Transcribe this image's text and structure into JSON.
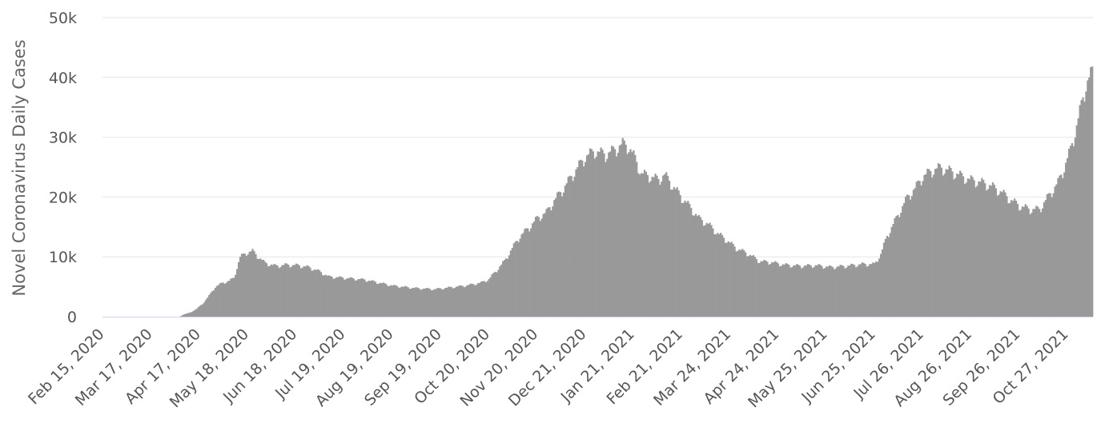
{
  "chart_data": {
    "type": "bar",
    "title": "",
    "ylabel": "Novel Coronavirus Daily Cases",
    "xlabel": "",
    "ylim": [
      0,
      50000
    ],
    "yticks": [
      {
        "value": 0,
        "label": "0"
      },
      {
        "value": 10000,
        "label": "10k"
      },
      {
        "value": 20000,
        "label": "20k"
      },
      {
        "value": 30000,
        "label": "30k"
      },
      {
        "value": 40000,
        "label": "40k"
      },
      {
        "value": 50000,
        "label": "50k"
      }
    ],
    "x_start": "2020-02-15",
    "x_end": "2021-11-12",
    "xtick_labels": [
      {
        "date": "2020-02-15",
        "label": "Feb 15, 2020"
      },
      {
        "date": "2020-03-17",
        "label": "Mar 17, 2020"
      },
      {
        "date": "2020-04-17",
        "label": "Apr 17, 2020"
      },
      {
        "date": "2020-05-18",
        "label": "May 18, 2020"
      },
      {
        "date": "2020-06-18",
        "label": "Jun 18, 2020"
      },
      {
        "date": "2020-07-19",
        "label": "Jul 19, 2020"
      },
      {
        "date": "2020-08-19",
        "label": "Aug 19, 2020"
      },
      {
        "date": "2020-09-19",
        "label": "Sep 19, 2020"
      },
      {
        "date": "2020-10-20",
        "label": "Oct 20, 2020"
      },
      {
        "date": "2020-11-20",
        "label": "Nov 20, 2020"
      },
      {
        "date": "2020-12-21",
        "label": "Dec 21, 2020"
      },
      {
        "date": "2021-01-21",
        "label": "Jan 21, 2021"
      },
      {
        "date": "2021-02-21",
        "label": "Feb 21, 2021"
      },
      {
        "date": "2021-03-24",
        "label": "Mar 24, 2021"
      },
      {
        "date": "2021-04-24",
        "label": "Apr 24, 2021"
      },
      {
        "date": "2021-05-25",
        "label": "May 25, 2021"
      },
      {
        "date": "2021-06-25",
        "label": "Jun 25, 2021"
      },
      {
        "date": "2021-07-26",
        "label": "Jul 26, 2021"
      },
      {
        "date": "2021-08-26",
        "label": "Aug 26, 2021"
      },
      {
        "date": "2021-09-26",
        "label": "Sep 26, 2021"
      },
      {
        "date": "2021-10-27",
        "label": "Oct 27, 2021"
      }
    ],
    "bar_color": "#999999",
    "grid": true,
    "grid_color": "#e6e6e6",
    "series_points": [
      {
        "date": "2020-02-15",
        "value": 0
      },
      {
        "date": "2020-04-04",
        "value": 0
      },
      {
        "date": "2020-04-07",
        "value": 400
      },
      {
        "date": "2020-04-11",
        "value": 700
      },
      {
        "date": "2020-04-15",
        "value": 1300
      },
      {
        "date": "2020-04-19",
        "value": 2200
      },
      {
        "date": "2020-04-23",
        "value": 3500
      },
      {
        "date": "2020-04-27",
        "value": 5000
      },
      {
        "date": "2020-05-02",
        "value": 5700
      },
      {
        "date": "2020-05-06",
        "value": 6000
      },
      {
        "date": "2020-05-09",
        "value": 6500
      },
      {
        "date": "2020-05-13",
        "value": 10000
      },
      {
        "date": "2020-05-17",
        "value": 10700
      },
      {
        "date": "2020-05-21",
        "value": 11000
      },
      {
        "date": "2020-05-24",
        "value": 10200
      },
      {
        "date": "2020-05-29",
        "value": 9000
      },
      {
        "date": "2020-06-05",
        "value": 8500
      },
      {
        "date": "2020-06-12",
        "value": 8700
      },
      {
        "date": "2020-06-19",
        "value": 8600
      },
      {
        "date": "2020-06-26",
        "value": 8300
      },
      {
        "date": "2020-07-03",
        "value": 7600
      },
      {
        "date": "2020-07-09",
        "value": 6700
      },
      {
        "date": "2020-07-19",
        "value": 6500
      },
      {
        "date": "2020-08-01",
        "value": 6200
      },
      {
        "date": "2020-08-10",
        "value": 5700
      },
      {
        "date": "2020-08-19",
        "value": 5200
      },
      {
        "date": "2020-09-02",
        "value": 4800
      },
      {
        "date": "2020-09-15",
        "value": 4600
      },
      {
        "date": "2020-09-25",
        "value": 4900
      },
      {
        "date": "2020-10-05",
        "value": 5200
      },
      {
        "date": "2020-10-15",
        "value": 5700
      },
      {
        "date": "2020-10-20",
        "value": 6300
      },
      {
        "date": "2020-10-25",
        "value": 7800
      },
      {
        "date": "2020-10-30",
        "value": 9300
      },
      {
        "date": "2020-11-04",
        "value": 11500
      },
      {
        "date": "2020-11-09",
        "value": 13500
      },
      {
        "date": "2020-11-15",
        "value": 15000
      },
      {
        "date": "2020-11-20",
        "value": 16500
      },
      {
        "date": "2020-11-26",
        "value": 17500
      },
      {
        "date": "2020-12-01",
        "value": 19500
      },
      {
        "date": "2020-12-07",
        "value": 21500
      },
      {
        "date": "2020-12-12",
        "value": 23500
      },
      {
        "date": "2020-12-16",
        "value": 25000
      },
      {
        "date": "2020-12-21",
        "value": 26800
      },
      {
        "date": "2020-12-27",
        "value": 27800
      },
      {
        "date": "2021-01-03",
        "value": 27200
      },
      {
        "date": "2021-01-09",
        "value": 28000
      },
      {
        "date": "2021-01-14",
        "value": 29000
      },
      {
        "date": "2021-01-18",
        "value": 28500
      },
      {
        "date": "2021-01-22",
        "value": 26500
      },
      {
        "date": "2021-01-26",
        "value": 24000
      },
      {
        "date": "2021-02-01",
        "value": 23500
      },
      {
        "date": "2021-02-06",
        "value": 23000
      },
      {
        "date": "2021-02-10",
        "value": 23800
      },
      {
        "date": "2021-02-15",
        "value": 22000
      },
      {
        "date": "2021-02-21",
        "value": 20000
      },
      {
        "date": "2021-02-26",
        "value": 18500
      },
      {
        "date": "2021-03-04",
        "value": 16500
      },
      {
        "date": "2021-03-10",
        "value": 15500
      },
      {
        "date": "2021-03-16",
        "value": 14000
      },
      {
        "date": "2021-03-22",
        "value": 12800
      },
      {
        "date": "2021-03-28",
        "value": 11500
      },
      {
        "date": "2021-04-05",
        "value": 10500
      },
      {
        "date": "2021-04-12",
        "value": 9300
      },
      {
        "date": "2021-04-20",
        "value": 9100
      },
      {
        "date": "2021-04-28",
        "value": 8700
      },
      {
        "date": "2021-05-08",
        "value": 8500
      },
      {
        "date": "2021-05-18",
        "value": 8600
      },
      {
        "date": "2021-05-28",
        "value": 8300
      },
      {
        "date": "2021-06-07",
        "value": 8500
      },
      {
        "date": "2021-06-17",
        "value": 8800
      },
      {
        "date": "2021-06-25",
        "value": 8800
      },
      {
        "date": "2021-06-29",
        "value": 10500
      },
      {
        "date": "2021-07-03",
        "value": 13500
      },
      {
        "date": "2021-07-07",
        "value": 15500
      },
      {
        "date": "2021-07-11",
        "value": 17500
      },
      {
        "date": "2021-07-16",
        "value": 20000
      },
      {
        "date": "2021-07-21",
        "value": 21500
      },
      {
        "date": "2021-07-26",
        "value": 23500
      },
      {
        "date": "2021-08-01",
        "value": 24500
      },
      {
        "date": "2021-08-06",
        "value": 25000
      },
      {
        "date": "2021-08-12",
        "value": 24500
      },
      {
        "date": "2021-08-18",
        "value": 23800
      },
      {
        "date": "2021-08-25",
        "value": 23000
      },
      {
        "date": "2021-09-02",
        "value": 22500
      },
      {
        "date": "2021-09-09",
        "value": 21800
      },
      {
        "date": "2021-09-15",
        "value": 20800
      },
      {
        "date": "2021-09-21",
        "value": 19500
      },
      {
        "date": "2021-09-27",
        "value": 18500
      },
      {
        "date": "2021-10-03",
        "value": 18000
      },
      {
        "date": "2021-10-09",
        "value": 18000
      },
      {
        "date": "2021-10-13",
        "value": 19500
      },
      {
        "date": "2021-10-17",
        "value": 21000
      },
      {
        "date": "2021-10-21",
        "value": 22500
      },
      {
        "date": "2021-10-25",
        "value": 25000
      },
      {
        "date": "2021-10-29",
        "value": 28000
      },
      {
        "date": "2021-11-02",
        "value": 32000
      },
      {
        "date": "2021-11-05",
        "value": 35500
      },
      {
        "date": "2021-11-08",
        "value": 39000
      },
      {
        "date": "2021-11-10",
        "value": 40000
      },
      {
        "date": "2021-11-12",
        "value": 41000
      }
    ]
  }
}
